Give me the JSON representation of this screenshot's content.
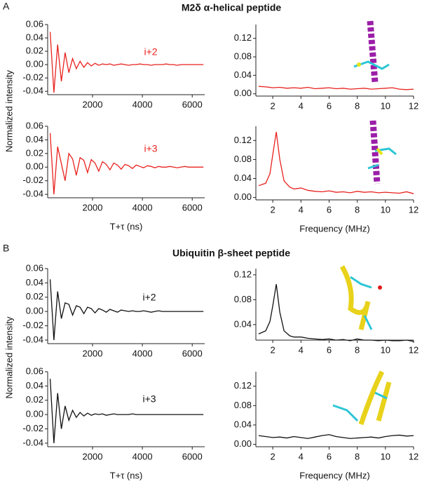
{
  "sections": [
    {
      "label": "A",
      "title": "M2δ α-helical peptide"
    },
    {
      "label": "B",
      "title": "Ubiquitin β-sheet peptide"
    }
  ],
  "chart_data": [
    {
      "type": "line",
      "y_label": "Normalized intensity",
      "annotation": "i+2",
      "x": [
        300,
        450,
        600,
        750,
        900,
        1050,
        1200,
        1350,
        1500,
        1650,
        1800,
        1950,
        2100,
        2250,
        2400,
        2550,
        2700,
        2850,
        3000,
        3150,
        3300,
        3450,
        3600,
        3750,
        3900,
        4050,
        4200,
        4350,
        4500,
        4650,
        4800,
        4950,
        5100,
        5250,
        5400,
        5550,
        5700,
        5850,
        6000,
        6150,
        6300,
        6450
      ],
      "series": [
        {
          "color": "#e8221e",
          "values": [
            0.049,
            -0.042,
            0.03,
            -0.025,
            0.018,
            -0.012,
            0.009,
            -0.006,
            0.005,
            -0.004,
            0.003,
            -0.002,
            0.002,
            -0.001,
            0.001,
            0,
            0.001,
            -0.001,
            0,
            0.001,
            0,
            -0.001,
            0,
            0,
            0.001,
            0,
            0,
            -0.001,
            0,
            0,
            0,
            0.001,
            0,
            0,
            -0.001,
            0,
            0,
            0,
            0,
            0,
            0,
            0
          ]
        }
      ],
      "xlim": [
        200,
        6500
      ],
      "ylim": [
        -0.045,
        0.06
      ],
      "xticks": [
        2000,
        4000,
        6000
      ],
      "yticks": [
        -0.04,
        -0.02,
        {
          "value": 0,
          "label": "0.00"
        },
        0.02,
        0.04,
        0.06
      ]
    },
    {
      "type": "line",
      "x": [
        1,
        1.5,
        2,
        2.5,
        3,
        3.5,
        4,
        4.5,
        5,
        5.5,
        6,
        6.5,
        7,
        7.5,
        8,
        8.5,
        9,
        9.5,
        10,
        10.5,
        11,
        11.5,
        12
      ],
      "series": [
        {
          "color": "#e8221e",
          "values": [
            0.016,
            0.015,
            0.013,
            0.014,
            0.012,
            0.013,
            0.012,
            0.014,
            0.011,
            0.012,
            0.013,
            0.011,
            0.012,
            0.01,
            0.011,
            0.012,
            0.01,
            0.011,
            0.012,
            0.013,
            0.01,
            0.009,
            0.01
          ]
        }
      ],
      "xlim": [
        0.8,
        12
      ],
      "ylim": [
        -0.005,
        0.15
      ],
      "xticks": [
        2,
        4,
        6,
        8,
        10,
        12
      ],
      "yticks": [
        {
          "value": 0,
          "label": "0.00"
        },
        0.04,
        0.08,
        0.12
      ]
    },
    {
      "type": "line",
      "annotation": "i+3",
      "x_label": "T+τ (ns)",
      "x": [
        300,
        450,
        600,
        750,
        900,
        1050,
        1200,
        1350,
        1500,
        1650,
        1800,
        1950,
        2100,
        2250,
        2400,
        2550,
        2700,
        2850,
        3000,
        3150,
        3300,
        3450,
        3600,
        3750,
        3900,
        4050,
        4200,
        4350,
        4500,
        4650,
        4800,
        4950,
        5100,
        5250,
        5400,
        5550,
        5700,
        5850,
        6000,
        6150,
        6300,
        6450
      ],
      "series": [
        {
          "color": "#e8221e",
          "values": [
            0.05,
            -0.04,
            0.03,
            0.005,
            -0.02,
            0.02,
            0.012,
            -0.012,
            0.014,
            0.01,
            -0.008,
            0.011,
            0.006,
            -0.006,
            0.008,
            0.004,
            -0.004,
            0.006,
            0.003,
            -0.003,
            0.004,
            0.002,
            -0.002,
            0.003,
            0.001,
            -0.001,
            0.002,
            0.001,
            -0.001,
            0.001,
            0,
            0,
            0.001,
            0,
            -0.001,
            0,
            0.001,
            0,
            0,
            0,
            0,
            0
          ]
        }
      ],
      "xlim": [
        200,
        6500
      ],
      "ylim": [
        -0.045,
        0.06
      ],
      "xticks": [
        2000,
        4000,
        6000
      ],
      "yticks": [
        -0.04,
        -0.02,
        {
          "value": 0,
          "label": "0.00"
        },
        0.02,
        0.04,
        0.06
      ]
    },
    {
      "type": "line",
      "x_label": "Frequency (MHz)",
      "x": [
        1,
        1.5,
        1.8,
        2,
        2.25,
        2.5,
        2.8,
        3.2,
        3.5,
        4,
        4.5,
        5,
        5.5,
        6,
        6.5,
        7,
        7.5,
        8,
        8.5,
        9,
        9.5,
        10,
        10.5,
        11,
        11.5,
        12
      ],
      "series": [
        {
          "color": "#e8221e",
          "values": [
            0.025,
            0.03,
            0.05,
            0.09,
            0.138,
            0.08,
            0.035,
            0.022,
            0.018,
            0.02,
            0.015,
            0.013,
            0.012,
            0.014,
            0.011,
            0.012,
            0.01,
            0.013,
            0.011,
            0.012,
            0.01,
            0.011,
            0.01,
            0.009,
            0.012,
            0.008
          ]
        }
      ],
      "xlim": [
        0.8,
        12
      ],
      "ylim": [
        -0.005,
        0.15
      ],
      "xticks": [
        2,
        4,
        6,
        8,
        10,
        12
      ],
      "yticks": [
        {
          "value": 0,
          "label": "0.00"
        },
        0.04,
        0.08,
        0.12
      ]
    },
    {
      "type": "line",
      "y_label": "Normalized intensity",
      "annotation": "i+2",
      "x": [
        300,
        450,
        600,
        750,
        900,
        1050,
        1200,
        1350,
        1500,
        1650,
        1800,
        1950,
        2100,
        2250,
        2400,
        2550,
        2700,
        2850,
        3000,
        3150,
        3300,
        3450,
        3600,
        3750,
        3900,
        4050,
        4200,
        4350,
        4500,
        4650,
        4800,
        4950,
        5100,
        5250,
        5400,
        5550,
        5700,
        5850,
        6000,
        6150,
        6300,
        6450
      ],
      "series": [
        {
          "color": "#111111",
          "values": [
            0.045,
            -0.04,
            0.028,
            -0.01,
            0.012,
            0.01,
            -0.005,
            0.008,
            0.006,
            -0.003,
            0.006,
            0.004,
            -0.002,
            0.004,
            0.002,
            -0.001,
            0.003,
            0.001,
            -0.001,
            0.002,
            0.001,
            0,
            0.001,
            0,
            0,
            0.001,
            0,
            -0.001,
            0,
            0.001,
            0,
            0,
            0,
            0,
            0,
            0,
            0,
            0,
            0,
            0,
            0,
            0
          ]
        }
      ],
      "xlim": [
        200,
        6500
      ],
      "ylim": [
        -0.045,
        0.06
      ],
      "xticks": [
        2000,
        4000,
        6000
      ],
      "yticks": [
        -0.04,
        -0.02,
        {
          "value": 0,
          "label": "0.00"
        },
        0.02,
        0.04,
        0.06
      ]
    },
    {
      "type": "line",
      "x": [
        1,
        1.5,
        1.8,
        2,
        2.25,
        2.5,
        2.8,
        3.2,
        3.5,
        4,
        4.5,
        5,
        5.5,
        6,
        6.5,
        7,
        7.5,
        8,
        8.5,
        9,
        9.5,
        10,
        10.5,
        11,
        11.5,
        12
      ],
      "series": [
        {
          "color": "#111111",
          "values": [
            0.025,
            0.03,
            0.045,
            0.07,
            0.105,
            0.06,
            0.03,
            0.022,
            0.02,
            0.02,
            0.018,
            0.017,
            0.016,
            0.017,
            0.015,
            0.016,
            0.014,
            0.017,
            0.015,
            0.015,
            0.014,
            0.015,
            0.014,
            0.014,
            0.015,
            0.013
          ]
        }
      ],
      "xlim": [
        0.8,
        12
      ],
      "ylim": [
        0.015,
        0.13
      ],
      "xticks": [
        2,
        4,
        6,
        8,
        10,
        12
      ],
      "yticks": [
        0.04,
        0.08,
        0.12
      ]
    },
    {
      "type": "line",
      "annotation": "i+3",
      "x_label": "T+τ (ns)",
      "x": [
        300,
        450,
        600,
        750,
        900,
        1050,
        1200,
        1350,
        1500,
        1650,
        1800,
        1950,
        2100,
        2250,
        2400,
        2550,
        2700,
        2850,
        3000,
        3150,
        3300,
        3450,
        3600,
        3750,
        3900,
        4050,
        4200,
        4350,
        4500,
        4650,
        4800,
        4950,
        5100,
        5250,
        5400,
        5550,
        5700,
        5850,
        6000,
        6150,
        6300,
        6450
      ],
      "series": [
        {
          "color": "#111111",
          "values": [
            0.05,
            -0.04,
            0.03,
            -0.02,
            0.012,
            -0.008,
            0.006,
            -0.004,
            0.003,
            -0.002,
            0.002,
            -0.001,
            0.001,
            0,
            0.001,
            -0.001,
            0,
            0.001,
            0,
            0,
            0,
            0,
            0.001,
            0,
            0,
            0,
            0,
            0,
            0,
            0,
            0,
            0,
            0,
            0,
            0,
            0,
            0,
            0,
            0,
            0,
            0,
            0
          ]
        }
      ],
      "xlim": [
        200,
        6500
      ],
      "ylim": [
        -0.045,
        0.06
      ],
      "xticks": [
        2000,
        4000,
        6000
      ],
      "yticks": [
        -0.04,
        -0.02,
        {
          "value": 0,
          "label": "0.00"
        },
        0.02,
        0.04,
        0.06
      ]
    },
    {
      "type": "line",
      "x_label": "Frequency (MHz)",
      "x": [
        1,
        1.5,
        2,
        2.5,
        3,
        3.5,
        4,
        4.5,
        5,
        5.5,
        6,
        6.5,
        7,
        7.5,
        8,
        8.5,
        9,
        9.5,
        10,
        10.5,
        11,
        11.5,
        12
      ],
      "series": [
        {
          "color": "#111111",
          "values": [
            0.018,
            0.016,
            0.014,
            0.015,
            0.013,
            0.016,
            0.014,
            0.012,
            0.015,
            0.018,
            0.02,
            0.016,
            0.014,
            0.012,
            0.013,
            0.014,
            0.015,
            0.013,
            0.016,
            0.018,
            0.019,
            0.017,
            0.018
          ]
        }
      ],
      "xlim": [
        0.8,
        12
      ],
      "ylim": [
        -0.005,
        0.15
      ],
      "xticks": [
        2,
        4,
        6,
        8,
        10,
        12
      ],
      "yticks": [
        {
          "value": 0,
          "label": "0.00"
        },
        0.04,
        0.08,
        0.12
      ]
    }
  ]
}
